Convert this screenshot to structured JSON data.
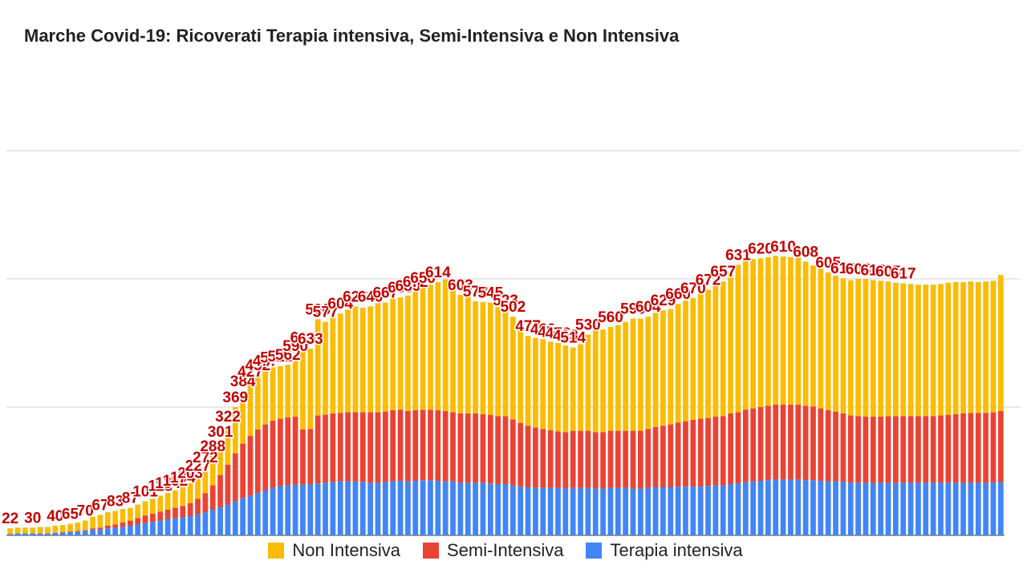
{
  "chart_data": {
    "type": "bar",
    "stacked": true,
    "title": "Marche Covid-19: Ricoverati Terapia intensiva, Semi-Intensiva e Non Intensiva",
    "xlabel": "",
    "ylabel": "",
    "ylim": [
      0,
      800
    ],
    "grid": true,
    "legend_position": "bottom",
    "series": [
      {
        "name": "Terapia intensiva",
        "color": "#4285f4",
        "values": [
          2,
          3,
          3,
          3,
          3,
          3,
          4,
          4,
          5,
          6,
          7,
          9,
          9,
          11,
          12,
          13,
          15,
          17,
          19,
          21,
          23,
          25,
          27,
          28,
          30,
          33,
          36,
          40,
          44,
          48,
          53,
          58,
          62,
          66,
          70,
          74,
          77,
          78,
          79,
          79,
          80,
          81,
          82,
          83,
          84,
          84,
          84,
          83,
          82,
          82,
          83,
          84,
          85,
          84,
          85,
          86,
          86,
          85,
          84,
          84,
          82,
          82,
          82,
          82,
          81,
          80,
          80,
          78,
          76,
          75,
          74,
          74,
          74,
          74,
          73,
          74,
          74,
          74,
          73,
          73,
          74,
          74,
          74,
          73,
          73,
          74,
          75,
          75,
          75,
          76,
          76,
          76,
          76,
          77,
          78,
          78,
          80,
          81,
          83,
          84,
          85,
          86,
          87,
          87,
          87,
          87,
          86,
          86,
          85,
          84,
          84,
          83,
          82,
          82,
          82,
          82,
          82,
          82,
          82,
          82,
          82,
          82,
          82,
          82,
          82,
          82,
          82,
          82,
          82,
          82,
          82,
          82,
          83
        ]
      },
      {
        "name": "Semi-Intensiva",
        "color": "#ea4335",
        "values": [
          0,
          0,
          0,
          0,
          0,
          0,
          0,
          1,
          1,
          1,
          1,
          2,
          3,
          4,
          5,
          7,
          8,
          10,
          12,
          13,
          14,
          15,
          16,
          18,
          20,
          24,
          30,
          38,
          50,
          62,
          75,
          85,
          93,
          99,
          103,
          105,
          105,
          106,
          106,
          86,
          86,
          106,
          106,
          107,
          107,
          108,
          108,
          109,
          110,
          110,
          110,
          111,
          111,
          110,
          110,
          110,
          110,
          110,
          110,
          108,
          108,
          108,
          108,
          107,
          107,
          106,
          106,
          103,
          99,
          96,
          94,
          92,
          90,
          88,
          88,
          89,
          89,
          89,
          88,
          88,
          89,
          89,
          89,
          90,
          90,
          92,
          94,
          96,
          98,
          100,
          102,
          104,
          106,
          106,
          107,
          108,
          110,
          111,
          113,
          114,
          115,
          116,
          117,
          117,
          117,
          117,
          116,
          115,
          113,
          111,
          109,
          107,
          105,
          104,
          103,
          103,
          103,
          104,
          104,
          104,
          104,
          104,
          104,
          104,
          105,
          106,
          107,
          108,
          109,
          109,
          109,
          110,
          111
        ]
      },
      {
        "name": "Non Intensiva",
        "color": "#fbbc04",
        "values": [
          9,
          9,
          9,
          9,
          10,
          10,
          11,
          11,
          12,
          13,
          15,
          18,
          20,
          21,
          21,
          21,
          20,
          21,
          22,
          23,
          25,
          26,
          27,
          29,
          32,
          36,
          40,
          46,
          52,
          60,
          72,
          82,
          85,
          85,
          84,
          83,
          82,
          82,
          95,
          128,
          125,
          150,
          145,
          150,
          155,
          160,
          165,
          163,
          165,
          170,
          170,
          175,
          175,
          180,
          185,
          190,
          195,
          200,
          205,
          190,
          185,
          185,
          175,
          175,
          175,
          170,
          165,
          160,
          145,
          140,
          140,
          140,
          138,
          138,
          135,
          130,
          135,
          150,
          160,
          160,
          162,
          165,
          170,
          175,
          175,
          175,
          178,
          180,
          180,
          185,
          188,
          190,
          195,
          200,
          205,
          210,
          220,
          230,
          232,
          233,
          232,
          232,
          232,
          231,
          230,
          230,
          225,
          220,
          218,
          215,
          212,
          211,
          211,
          214,
          215,
          213,
          212,
          210,
          208,
          207,
          206,
          205,
          205,
          205,
          205,
          206,
          206,
          205,
          205,
          204,
          205,
          205,
          212
        ]
      }
    ],
    "data_labels": [
      {
        "bar": 0,
        "text": "22"
      },
      {
        "bar": 3,
        "text": "30"
      },
      {
        "bar": 6,
        "text": "40"
      },
      {
        "bar": 8,
        "text": "65"
      },
      {
        "bar": 10,
        "text": "70"
      },
      {
        "bar": 12,
        "text": "67"
      },
      {
        "bar": 14,
        "text": "83"
      },
      {
        "bar": 16,
        "text": "87"
      },
      {
        "bar": 18,
        "text": "101"
      },
      {
        "bar": 20,
        "text": "118"
      },
      {
        "bar": 21,
        "text": "134"
      },
      {
        "bar": 22,
        "text": "152"
      },
      {
        "bar": 23,
        "text": "174"
      },
      {
        "bar": 24,
        "text": "203"
      },
      {
        "bar": 25,
        "text": "227"
      },
      {
        "bar": 26,
        "text": "272"
      },
      {
        "bar": 27,
        "text": "288"
      },
      {
        "bar": 28,
        "text": "301"
      },
      {
        "bar": 29,
        "text": "322"
      },
      {
        "bar": 30,
        "text": "369"
      },
      {
        "bar": 31,
        "text": "384"
      },
      {
        "bar": 32,
        "text": "427"
      },
      {
        "bar": 33,
        "text": "452"
      },
      {
        "bar": 34,
        "text": "477"
      },
      {
        "bar": 35,
        "text": "504"
      },
      {
        "bar": 36,
        "text": "521"
      },
      {
        "bar": 37,
        "text": "562"
      },
      {
        "bar": 38,
        "text": "590"
      },
      {
        "bar": 39,
        "text": "610"
      },
      {
        "bar": 40,
        "text": "633"
      },
      {
        "bar": 41,
        "text": "560"
      },
      {
        "bar": 42,
        "text": "577"
      },
      {
        "bar": 44,
        "text": "604"
      },
      {
        "bar": 46,
        "text": "626"
      },
      {
        "bar": 48,
        "text": "640"
      },
      {
        "bar": 50,
        "text": "667"
      },
      {
        "bar": 52,
        "text": "659"
      },
      {
        "bar": 53,
        "text": "680"
      },
      {
        "bar": 54,
        "text": "672"
      },
      {
        "bar": 55,
        "text": "650"
      },
      {
        "bar": 57,
        "text": "614"
      },
      {
        "bar": 60,
        "text": "603"
      },
      {
        "bar": 62,
        "text": "573"
      },
      {
        "bar": 64,
        "text": "545"
      },
      {
        "bar": 66,
        "text": "523"
      },
      {
        "bar": 67,
        "text": "502"
      },
      {
        "bar": 69,
        "text": "477"
      },
      {
        "bar": 71,
        "text": "462"
      },
      {
        "bar": 72,
        "text": "458"
      },
      {
        "bar": 73,
        "text": "476"
      },
      {
        "bar": 74,
        "text": "493"
      },
      {
        "bar": 75,
        "text": "514"
      },
      {
        "bar": 77,
        "text": "530"
      },
      {
        "bar": 80,
        "text": "560"
      },
      {
        "bar": 83,
        "text": "590"
      },
      {
        "bar": 85,
        "text": "604"
      },
      {
        "bar": 87,
        "text": "629"
      },
      {
        "bar": 89,
        "text": "660"
      },
      {
        "bar": 91,
        "text": "670"
      },
      {
        "bar": 93,
        "text": "672"
      },
      {
        "bar": 95,
        "text": "657"
      },
      {
        "bar": 97,
        "text": "631"
      },
      {
        "bar": 100,
        "text": "620"
      },
      {
        "bar": 103,
        "text": "610"
      },
      {
        "bar": 106,
        "text": "608"
      },
      {
        "bar": 109,
        "text": "605"
      },
      {
        "bar": 111,
        "text": "610"
      },
      {
        "bar": 113,
        "text": "603"
      },
      {
        "bar": 115,
        "text": "613"
      },
      {
        "bar": 117,
        "text": "605"
      },
      {
        "bar": 119,
        "text": "617"
      }
    ]
  },
  "legend": [
    {
      "label": "Non Intensiva",
      "color": "#fbbc04"
    },
    {
      "label": "Semi-Intensiva",
      "color": "#ea4335"
    },
    {
      "label": "Terapia intensiva",
      "color": "#4285f4"
    }
  ]
}
